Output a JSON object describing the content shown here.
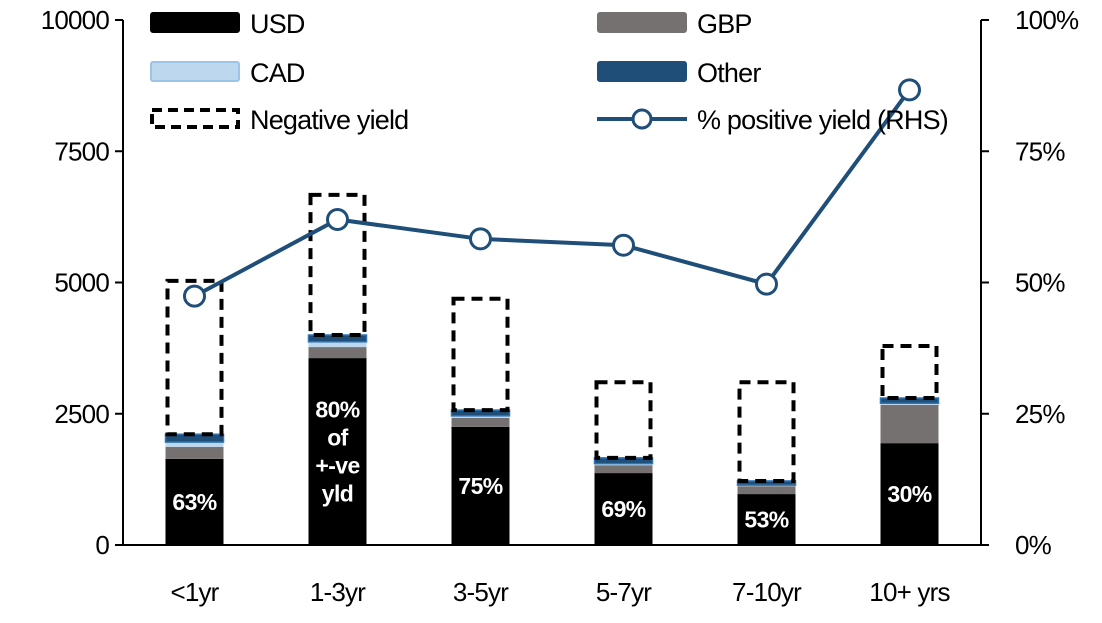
{
  "chart_data": {
    "type": "bar",
    "stacked": true,
    "categories": [
      "<1yr",
      "1-3yr",
      "3-5yr",
      "5-7yr",
      "7-10yr",
      "10+ yrs"
    ],
    "series": [
      {
        "name": "USD",
        "color": "#000000",
        "values": [
          1640,
          3560,
          2250,
          1370,
          970,
          1940
        ]
      },
      {
        "name": "GBP",
        "color": "#767171",
        "values": [
          230,
          210,
          170,
          150,
          150,
          730
        ]
      },
      {
        "name": "CAD",
        "color": "#BDD7EE",
        "values": [
          90,
          100,
          40,
          30,
          20,
          30
        ]
      },
      {
        "name": "Other",
        "color": "#1F4E79",
        "values": [
          150,
          130,
          110,
          110,
          80,
          100
        ]
      },
      {
        "name": "Negative yield",
        "style": "dashed-outline",
        "values": [
          2920,
          2670,
          2120,
          1440,
          1880,
          990
        ]
      }
    ],
    "line_series": {
      "name": "% positive yield (RHS)",
      "color": "#1F4E79",
      "axis": "right",
      "values": [
        47.4,
        62.0,
        58.3,
        57.1,
        49.7,
        86.7
      ]
    },
    "data_labels": [
      [
        "63%"
      ],
      [
        "80%",
        "of",
        "+-ve",
        "yld"
      ],
      [
        "75%"
      ],
      [
        "69%"
      ],
      [
        "53%"
      ],
      [
        "30%"
      ]
    ],
    "y_left": {
      "lim": [
        0,
        10000
      ],
      "ticks": [
        "0",
        "2500",
        "5000",
        "7500",
        "10000"
      ],
      "tick_values": [
        0,
        2500,
        5000,
        7500,
        10000
      ]
    },
    "y_right": {
      "lim": [
        0,
        100
      ],
      "ticks": [
        "0%",
        "25%",
        "50%",
        "75%",
        "100%"
      ],
      "tick_values": [
        0,
        25,
        50,
        75,
        100
      ]
    },
    "grid": false,
    "legend_placement": "top",
    "legend": [
      "USD",
      "GBP",
      "CAD",
      "Other",
      "Negative yield",
      "% positive yield (RHS)"
    ]
  }
}
